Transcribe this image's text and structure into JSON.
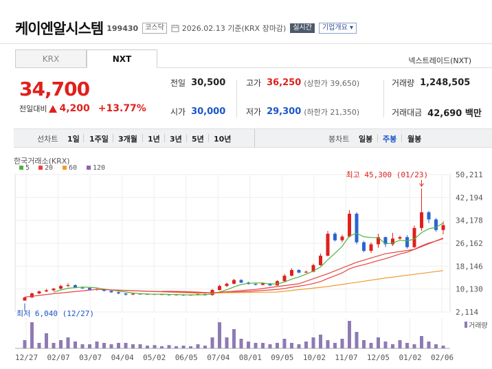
{
  "header": {
    "name": "케이엔알시스템",
    "code": "199430",
    "market": "코스닥",
    "date_text": "2026.02.13 기준(KRX 장마감)",
    "realtime": "실시간",
    "company": "기업개요"
  },
  "tabs": {
    "krx": "KRX",
    "nxt": "NXT",
    "nxt_link": "넥스트레이드(NXT)"
  },
  "quote": {
    "price": "34,700",
    "change_label": "전일대비",
    "change": "4,200",
    "change_pct": "+13.77%",
    "prev_label": "전일",
    "prev": "30,500",
    "open_label": "시가",
    "open": "30,000",
    "high_label": "고가",
    "high": "36,250",
    "high_limit": "(상한가 39,650)",
    "low_label": "저가",
    "low": "29,300",
    "low_limit": "(하한가 21,350)",
    "vol_label": "거래량",
    "volume": "1,248,505",
    "amt_label": "거래대금",
    "amount": "42,690 백만"
  },
  "periods": {
    "line_label": "선차트",
    "line_items": [
      "1일",
      "1주일",
      "3개월",
      "1년",
      "3년",
      "5년",
      "10년"
    ],
    "candle_label": "봉차트",
    "candle_items": [
      "일봉",
      "주봉",
      "월봉"
    ],
    "selected_candle": "주봉"
  },
  "chart_data": {
    "type": "candlestick",
    "source_label": "한국거래소(KRX)",
    "ma_legend": [
      {
        "label": "5",
        "color": "#4db33d"
      },
      {
        "label": "20",
        "color": "#e84040"
      },
      {
        "label": "60",
        "color": "#f29a2e"
      },
      {
        "label": "120",
        "color": "#8e60b8"
      }
    ],
    "y_ticks": [
      "50,211",
      "42,194",
      "34,178",
      "26,162",
      "18,146",
      "10,130",
      "2,114"
    ],
    "x_ticks": [
      "12/27",
      "02/07",
      "03/07",
      "04/04",
      "05/02",
      "06/05",
      "07/04",
      "08/01",
      "09/05",
      "10/02",
      "11/07",
      "12/05",
      "01/02",
      "02/06"
    ],
    "high_annotation": "최고 45,300 (01/23)",
    "low_annotation": "최저 6,040 (12/27)",
    "volume_label": "거래량",
    "up_color": "#e0201c",
    "down_color": "#2a65d0"
  }
}
